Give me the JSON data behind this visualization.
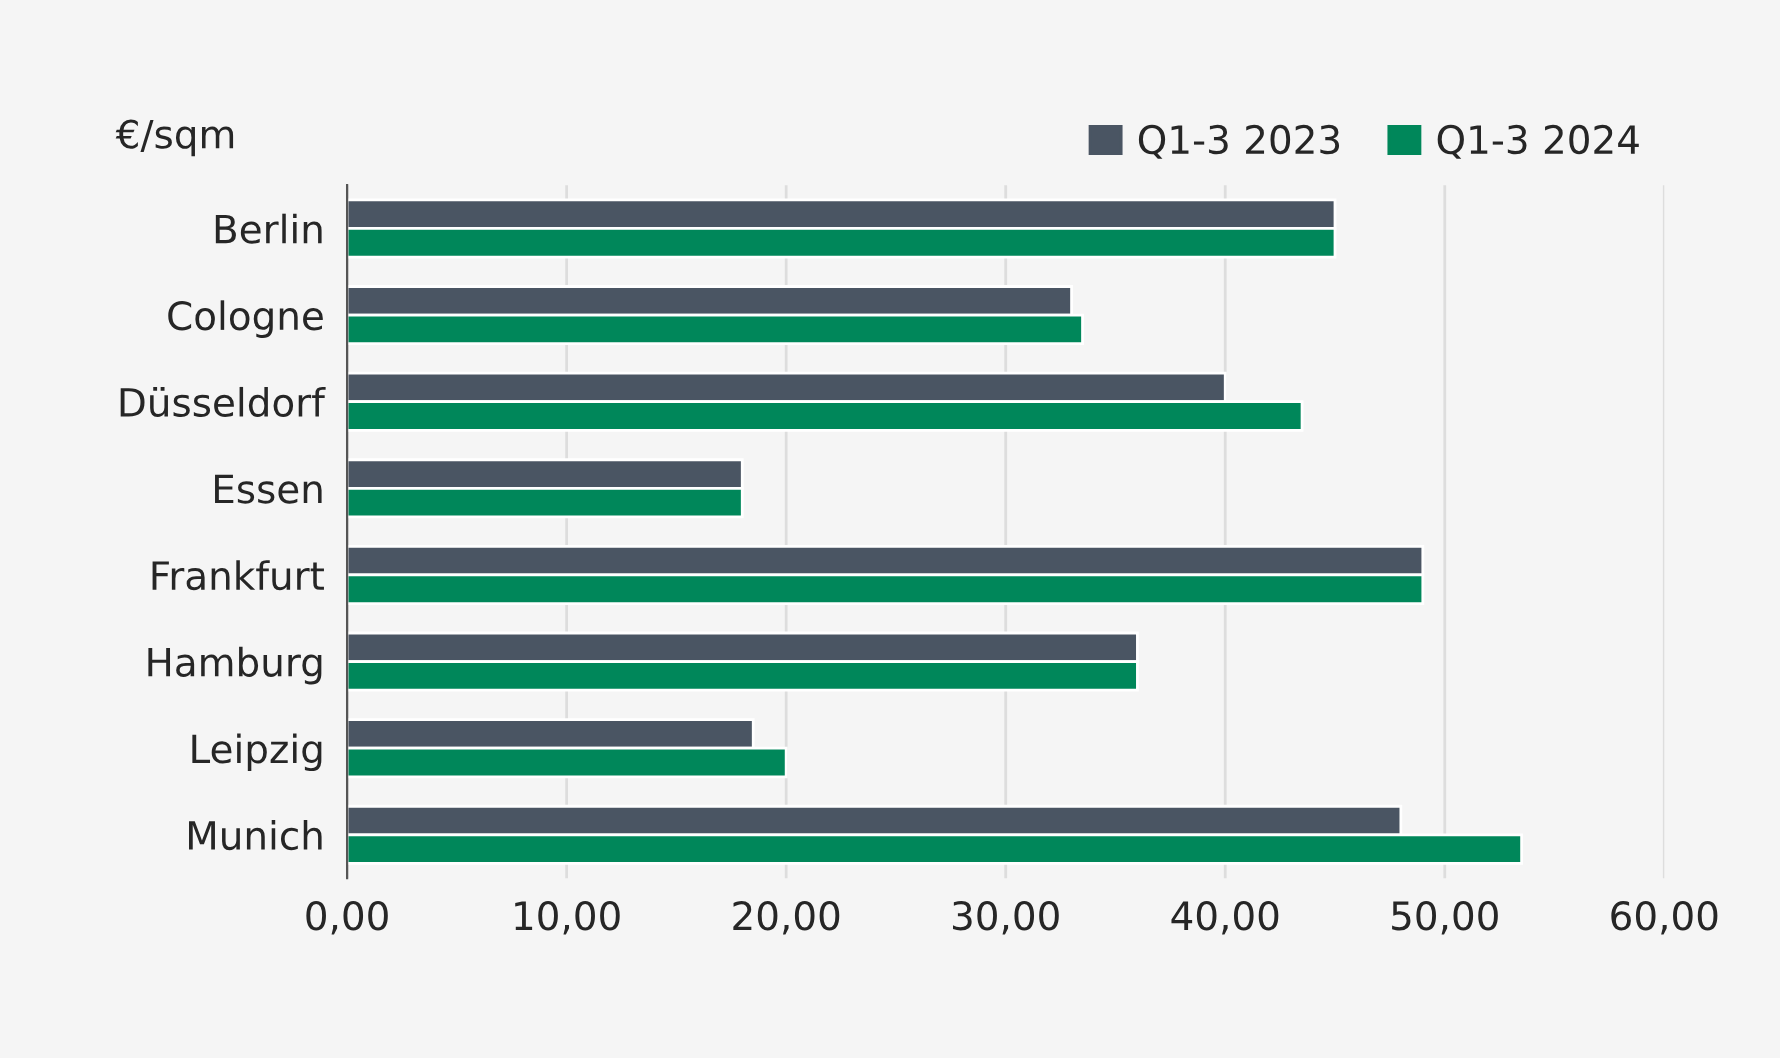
{
  "chart_data": {
    "type": "bar",
    "orientation": "horizontal",
    "ylabel": "€/sqm",
    "categories": [
      "Berlin",
      "Cologne",
      "Düsseldorf",
      "Essen",
      "Frankfurt",
      "Hamburg",
      "Leipzig",
      "Munich"
    ],
    "series": [
      {
        "name": "Q1-3 2023",
        "color": "#4a5563",
        "values": [
          45.0,
          33.0,
          40.0,
          18.0,
          49.0,
          36.0,
          18.5,
          48.0
        ]
      },
      {
        "name": "Q1-3 2024",
        "color": "#00875a",
        "values": [
          45.0,
          33.5,
          43.5,
          18.0,
          49.0,
          36.0,
          20.0,
          53.5
        ]
      }
    ],
    "xlim": [
      0,
      60
    ],
    "xticks": [
      {
        "value": 0,
        "label": "0,00"
      },
      {
        "value": 10,
        "label": "10,00"
      },
      {
        "value": 20,
        "label": "20,00"
      },
      {
        "value": 30,
        "label": "30,00"
      },
      {
        "value": 40,
        "label": "40,00"
      },
      {
        "value": 50,
        "label": "50,00"
      },
      {
        "value": 60,
        "label": "60,00"
      }
    ],
    "grid": "x",
    "legend": "top right"
  }
}
